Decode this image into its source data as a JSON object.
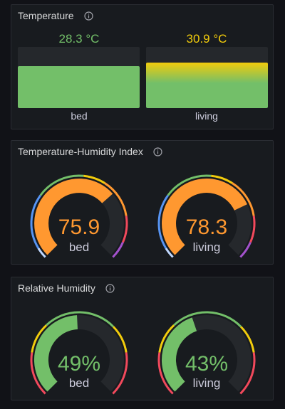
{
  "panels": {
    "temperature": {
      "title": "Temperature",
      "items": [
        {
          "value": "28.3 °C",
          "label": "bed",
          "color": "#73bf69",
          "fill": 0.69
        },
        {
          "value": "30.9 °C",
          "label": "living",
          "color": "#f2cc0c",
          "fill": 0.75
        }
      ]
    },
    "thi": {
      "title": "Temperature-Humidity Index",
      "items": [
        {
          "value": "75.9",
          "label": "bed",
          "color": "#ff9830",
          "fraction": 0.68
        },
        {
          "value": "78.3",
          "label": "living",
          "color": "#ff9830",
          "fraction": 0.74
        }
      ]
    },
    "humidity": {
      "title": "Relative Humidity",
      "items": [
        {
          "value": "49%",
          "label": "bed",
          "color": "#73bf69",
          "fraction": 0.49
        },
        {
          "value": "43%",
          "label": "living",
          "color": "#73bf69",
          "fraction": 0.43
        }
      ]
    }
  },
  "colors": {
    "green": "#73bf69",
    "orange": "#ff9830",
    "yellow": "#f2cc0c",
    "red": "#f2495c",
    "purple": "#a352cc",
    "blue": "#5794f2",
    "track": "#25282c"
  }
}
